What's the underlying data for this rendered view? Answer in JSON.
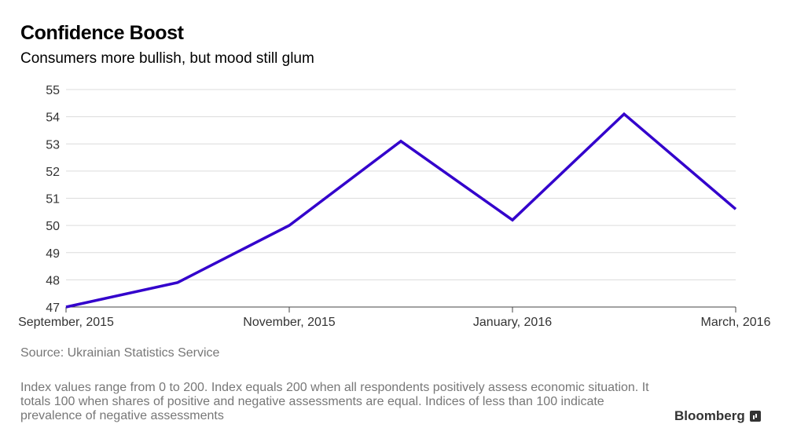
{
  "header": {
    "title": "Confidence Boost",
    "subtitle": "Consumers more bullish, but mood still glum"
  },
  "footer": {
    "source": "Source: Ukrainian Statistics Service",
    "note": "Index values range from 0 to 200. Index equals 200 when all respondents positively assess economic situation. It totals 100 when shares of positive and negative assessments are equal. Indices of less than 100 indicate prevalence of negative assessments",
    "brand": "Bloomberg"
  },
  "chart_data": {
    "type": "line",
    "title": "Confidence Boost",
    "subtitle": "Consumers more bullish, but mood still glum",
    "xlabel": "",
    "ylabel": "",
    "x": [
      "September, 2015",
      "October, 2015",
      "November, 2015",
      "December, 2015",
      "January, 2016",
      "February, 2016",
      "March, 2016"
    ],
    "x_tick_labels": [
      "September, 2015",
      "November, 2015",
      "January, 2016",
      "March, 2016"
    ],
    "series": [
      {
        "values": [
          47.0,
          47.9,
          50.0,
          53.1,
          50.2,
          54.1,
          50.6
        ],
        "color": "#3300cc"
      }
    ],
    "ylim": [
      47,
      55
    ],
    "yticks": [
      47,
      48,
      49,
      50,
      51,
      52,
      53,
      54,
      55
    ],
    "grid": true,
    "legend": "none"
  }
}
